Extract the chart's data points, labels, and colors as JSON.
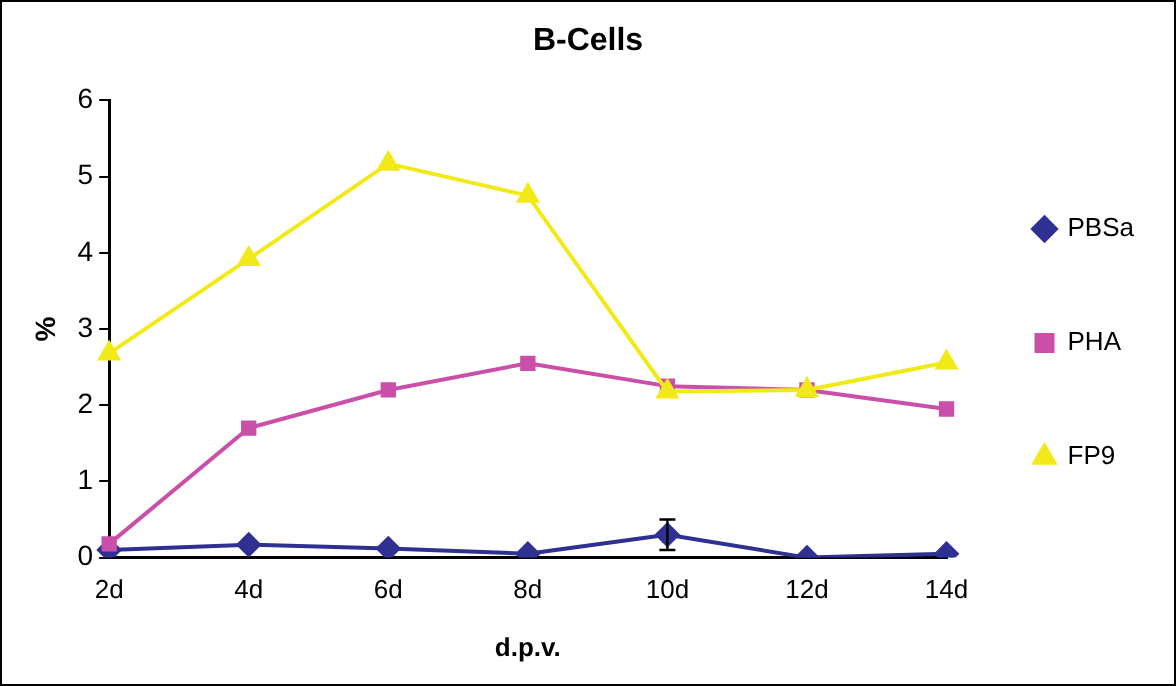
{
  "chart_data": {
    "type": "line",
    "title": "B-Cells",
    "xlabel": "d.p.v.",
    "ylabel": "%",
    "categories": [
      "2d",
      "4d",
      "6d",
      "8d",
      "10d",
      "12d",
      "14d"
    ],
    "series": [
      {
        "name": "PBSa",
        "color": "#2e3192",
        "marker": "diamond",
        "values": [
          0.1,
          0.17,
          0.12,
          0.05,
          0.3,
          0,
          0.05
        ],
        "errors": [
          null,
          null,
          null,
          null,
          [
            0.1,
            0.5
          ],
          null,
          null
        ]
      },
      {
        "name": "PHA",
        "color": "#c94fa8",
        "marker": "square",
        "values": [
          0.18,
          1.7,
          2.2,
          2.55,
          2.25,
          2.2,
          1.95
        ]
      },
      {
        "name": "FP9",
        "color": "#f2ea18",
        "marker": "triangle",
        "values": [
          2.68,
          3.92,
          5.17,
          4.75,
          2.18,
          2.2,
          2.56
        ]
      }
    ],
    "ylim": [
      0,
      6
    ],
    "yticks": [
      0,
      1,
      2,
      3,
      4,
      5,
      6
    ],
    "grid": false,
    "legend": "right",
    "line_style": "solid"
  }
}
